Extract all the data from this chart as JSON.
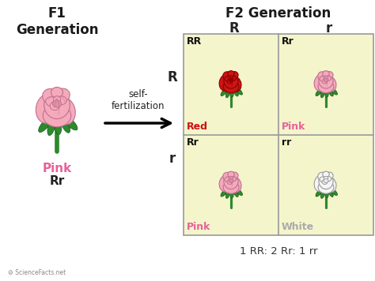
{
  "title_f1": "F1\nGeneration",
  "title_f2": "F2 Generation",
  "bg_color": "#ffffff",
  "grid_bg": "#f5f5cc",
  "grid_line_color": "#aaaaaa",
  "f1_label_color": "#e8609a",
  "arrow_label": "self-\nfertilization",
  "col_headers": [
    "R",
    "r"
  ],
  "row_headers": [
    "R",
    "r"
  ],
  "genotypes": [
    "RR",
    "Rr",
    "Rr",
    "rr"
  ],
  "phenotypes": [
    "Red",
    "Pink",
    "Pink",
    "White"
  ],
  "ph_colors": [
    "#cc1111",
    "#e8609a",
    "#e8609a",
    "#aaaaaa"
  ],
  "rose_fill_colors": [
    "#cc1515",
    "#f4aabb",
    "#f4aabb",
    "#f5f5f5"
  ],
  "rose_edge_colors": [
    "#8b0000",
    "#c07090",
    "#c07090",
    "#999999"
  ],
  "rose_styles": [
    "red",
    "pink",
    "pink",
    "white"
  ],
  "ratio_text": "1 RR: 2 Rr: 1 rr",
  "ratio_color": "#333333",
  "footer_text": "ScienceFacts.net",
  "leaf_color": "#2d8a2d",
  "leaf_edge_color": "#1a5a1a",
  "title_fontsize": 12,
  "genotype_fontsize": 9,
  "phenotype_fontsize": 9
}
